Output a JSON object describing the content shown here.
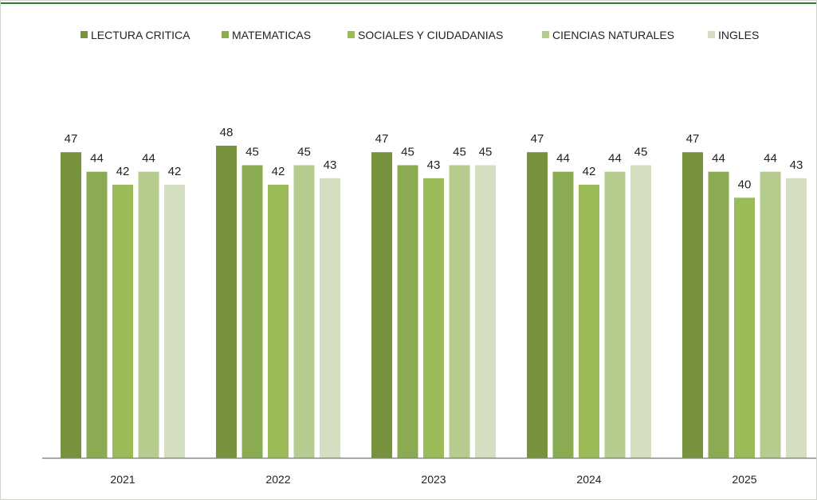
{
  "chart_data": {
    "type": "bar",
    "categories": [
      "2021",
      "2022",
      "2023",
      "2024",
      "2025"
    ],
    "series": [
      {
        "name": "LECTURA CRITICA",
        "color": "#76923c",
        "values": [
          47,
          48,
          47,
          47,
          47
        ]
      },
      {
        "name": "MATEMATICAS",
        "color": "#8aab52",
        "values": [
          44,
          45,
          45,
          44,
          44
        ]
      },
      {
        "name": "SOCIALES Y CIUDADANIAS",
        "color": "#9bbb59",
        "values": [
          42,
          42,
          43,
          42,
          40
        ]
      },
      {
        "name": "CIENCIAS NATURALES",
        "color": "#b5cc8e",
        "values": [
          44,
          45,
          45,
          44,
          44
        ]
      },
      {
        "name": "INGLES",
        "color": "#d3dfc0",
        "values": [
          42,
          43,
          45,
          45,
          43
        ]
      }
    ],
    "value_labels": true,
    "grid": false,
    "legend_position": "top",
    "ylim": [
      0,
      50
    ]
  },
  "colors": {
    "axis": "#888888",
    "text": "#222222",
    "frame_top_accent": "#2e7d32"
  }
}
